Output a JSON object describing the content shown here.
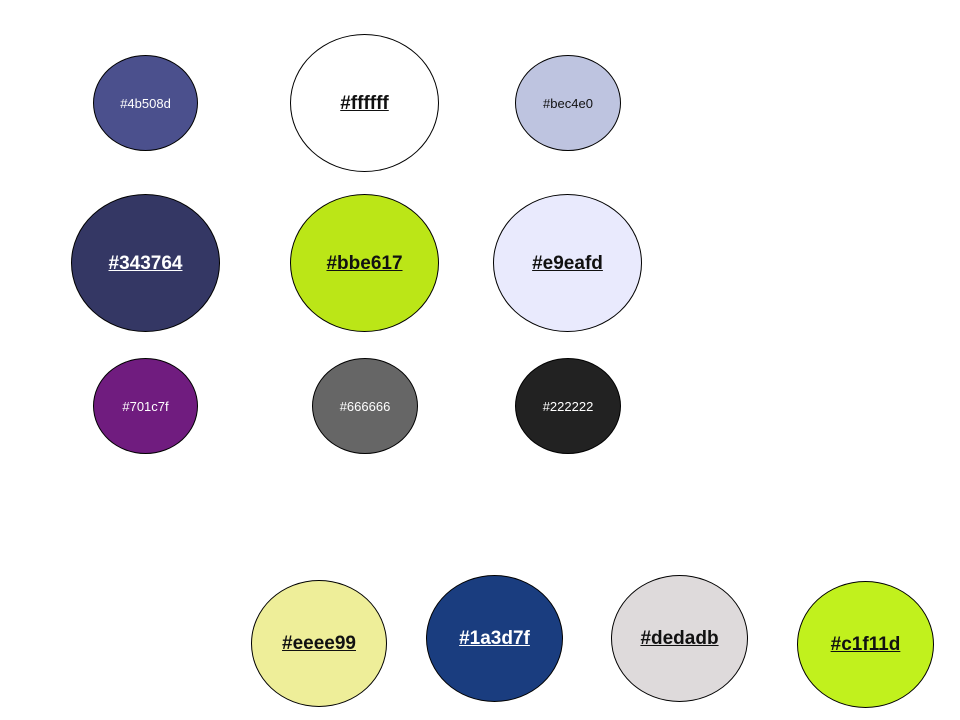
{
  "swatches": [
    {
      "label": "#4b508d",
      "color": "#4b508d"
    },
    {
      "label": "#ffffff",
      "color": "#ffffff"
    },
    {
      "label": "#bec4e0",
      "color": "#bec4e0"
    },
    {
      "label": "#343764",
      "color": "#343764"
    },
    {
      "label": "#bbe617",
      "color": "#bbe617"
    },
    {
      "label": "#e9eafd",
      "color": "#e9eafd"
    },
    {
      "label": "#701c7f",
      "color": "#701c7f"
    },
    {
      "label": "#666666",
      "color": "#666666"
    },
    {
      "label": "#222222",
      "color": "#222222"
    },
    {
      "label": "#eeee99",
      "color": "#eeee99"
    },
    {
      "label": "#1a3d7f",
      "color": "#1a3d7f"
    },
    {
      "label": "#dedadb",
      "color": "#dedadb"
    },
    {
      "label": "#c1f11d",
      "color": "#c1f11d"
    }
  ]
}
